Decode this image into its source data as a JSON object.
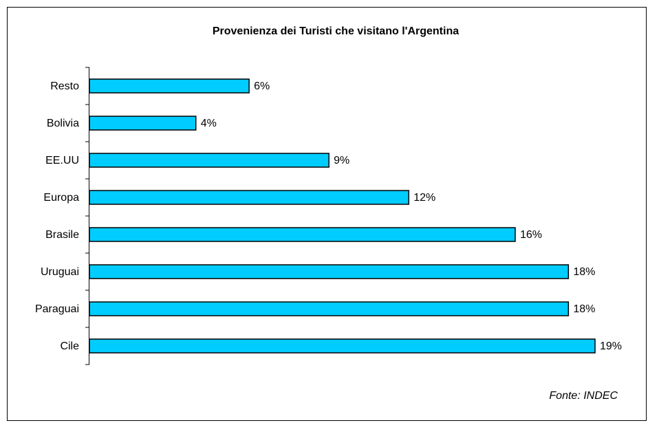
{
  "chart_data": {
    "type": "bar",
    "orientation": "horizontal",
    "title": "Provenienza dei Turisti che visitano l'Argentina",
    "categories": [
      "Resto",
      "Bolivia",
      "EE.UU",
      "Europa",
      "Brasile",
      "Uruguai",
      "Paraguai",
      "Cile"
    ],
    "values": [
      6,
      4,
      9,
      12,
      16,
      18,
      18,
      19
    ],
    "value_labels": [
      "6%",
      "4%",
      "9%",
      "12%",
      "16%",
      "18%",
      "18%",
      "19%"
    ],
    "color": "#00ccff",
    "xlim": [
      0,
      19
    ],
    "annotation": "Fonte: INDEC"
  }
}
